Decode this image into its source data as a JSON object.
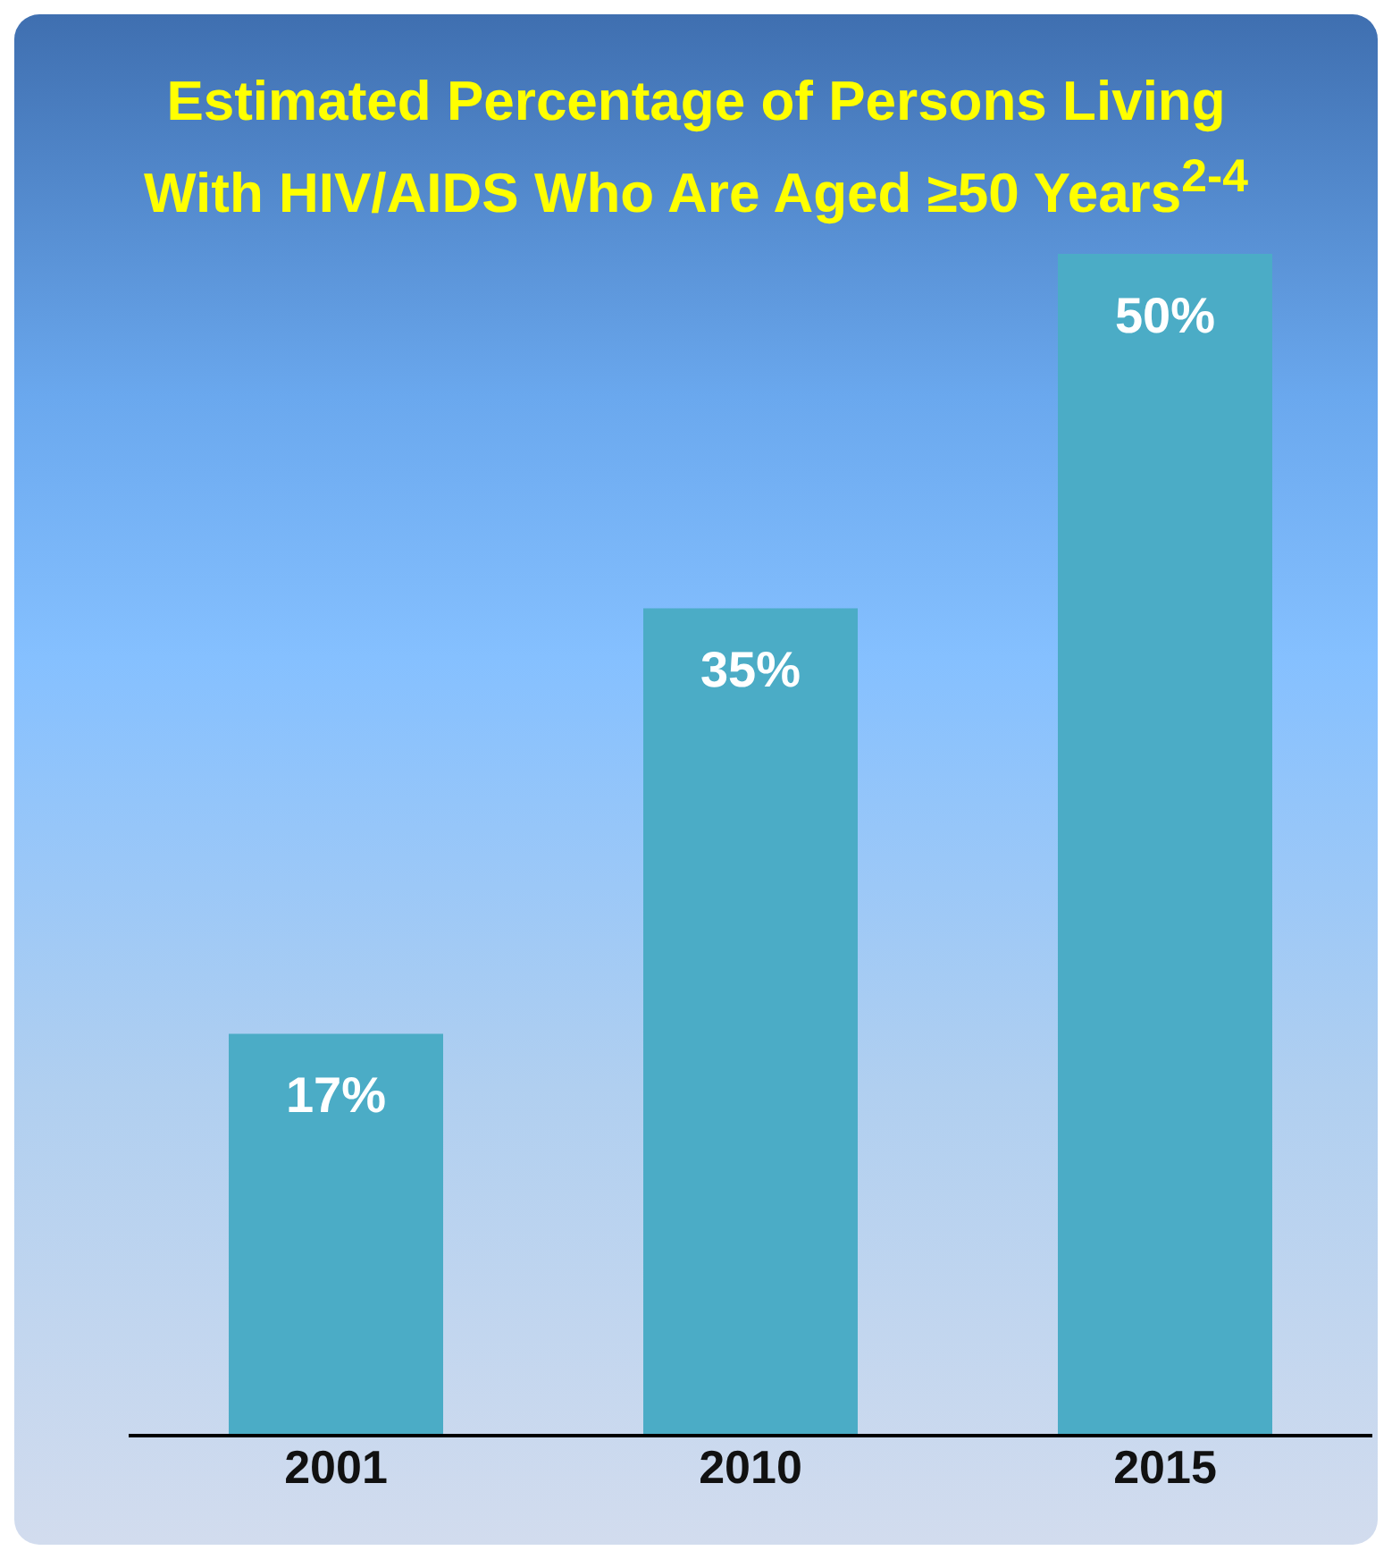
{
  "chart_data": {
    "type": "bar",
    "title": "Estimated Percentage of Persons Living With HIV/AIDS Who Are Aged ≥50 Years$^{2-4}$",
    "categories": [
      "2001",
      "2010",
      "2015"
    ],
    "values": [
      17,
      35,
      50
    ],
    "value_labels": [
      "17%",
      "35%",
      "50%"
    ],
    "color": "#4bacc6"
  }
}
